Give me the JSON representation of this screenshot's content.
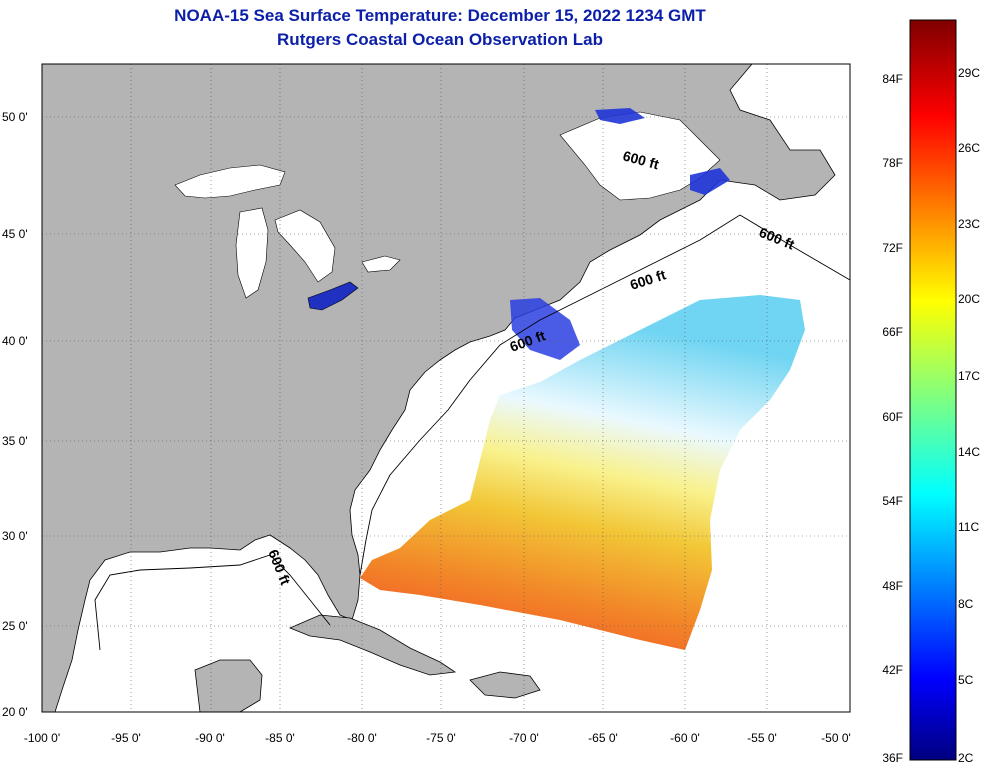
{
  "header": {
    "title": "NOAA-15 Sea Surface Temperature:  December 15, 2022 1234 GMT",
    "subtitle": "Rutgers Coastal Ocean Observation Lab"
  },
  "map": {
    "lon_ticks": [
      "-100 0'",
      "-95 0'",
      "-90 0'",
      "-85 0'",
      "-80 0'",
      "-75 0'",
      "-70 0'",
      "-65 0'",
      "-60 0'",
      "-55 0'",
      "-50 0'"
    ],
    "lat_ticks": [
      "50 0'",
      "45 0'",
      "40 0'",
      "35 0'",
      "30 0'",
      "25 0'",
      "20 0'"
    ],
    "isobath_labels": [
      "600 ft",
      "600 ft",
      "600 ft",
      "600 ft",
      "600 ft"
    ],
    "land_color": "#b4b4b4",
    "ocean_color": "#ffffff"
  },
  "colorbar": {
    "fahrenheit_labels": [
      "84F",
      "78F",
      "72F",
      "66F",
      "60F",
      "54F",
      "48F",
      "42F",
      "36F"
    ],
    "celsius_labels": [
      "29C",
      "26C",
      "23C",
      "20C",
      "17C",
      "14C",
      "11C",
      "8C",
      "5C",
      "2C"
    ],
    "top_color": "#7f0000",
    "bottom_color": "#00007f"
  }
}
